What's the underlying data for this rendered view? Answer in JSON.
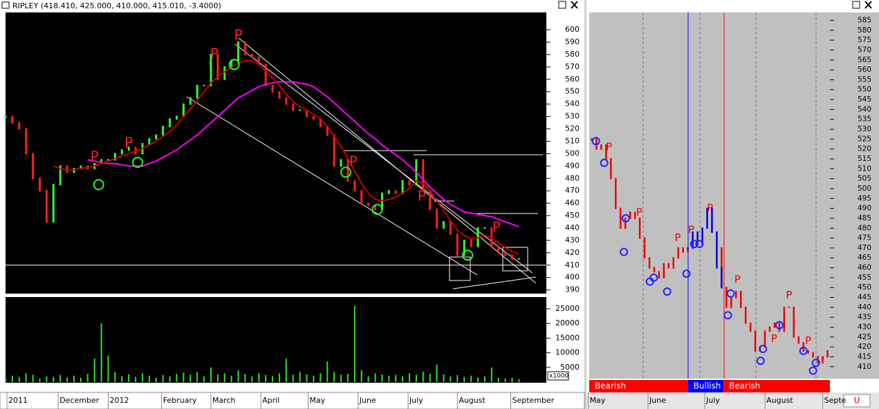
{
  "chart_data": [
    {
      "type": "stock",
      "title": "RIPLEY (418.410, 425.000, 410.000, 415.010, -3.4000)",
      "values": [
        530,
        525,
        520,
        500,
        480,
        470,
        445,
        475,
        490,
        485,
        488,
        490,
        488,
        492,
        495,
        495,
        500,
        503,
        505,
        500,
        508,
        512,
        515,
        522,
        528,
        530,
        540,
        545,
        555,
        555,
        580,
        560,
        570,
        575,
        590,
        580,
        578,
        572,
        555,
        550,
        545,
        540,
        535,
        535,
        530,
        528,
        522,
        515,
        490,
        495,
        478,
        470,
        460,
        458,
        455,
        468,
        470,
        468,
        478,
        475,
        495,
        470,
        455,
        440,
        445,
        435,
        418,
        430,
        425,
        440,
        440,
        425,
        420,
        418,
        415,
        415
      ],
      "up_color": "#33ff33",
      "down_color": "#ff2020",
      "moving_averages": [
        {
          "color": "#ff00ff",
          "values": [
            null,
            null,
            null,
            null,
            null,
            null,
            null,
            null,
            null,
            null,
            null,
            null,
            495,
            494,
            493,
            492,
            492,
            491,
            490,
            490,
            490,
            492,
            494,
            497,
            500,
            503,
            507,
            511,
            515,
            520,
            525,
            530,
            535,
            540,
            545,
            548,
            551,
            554,
            556,
            557,
            558,
            558,
            558,
            557,
            556,
            554,
            550,
            546,
            541,
            536,
            531,
            526,
            521,
            516,
            512,
            507,
            503,
            499,
            495,
            490,
            485,
            479,
            473,
            468,
            463,
            459,
            456,
            453,
            452,
            451,
            450,
            449,
            447,
            445,
            443,
            441
          ]
        },
        {
          "color": "#cc0000",
          "values": [
            null,
            null,
            null,
            null,
            null,
            null,
            null,
            490,
            488,
            487,
            487,
            488,
            489,
            490,
            492,
            494,
            496,
            498,
            500,
            502,
            504,
            507,
            510,
            514,
            518,
            523,
            530,
            536,
            543,
            550,
            557,
            562,
            566,
            570,
            573,
            575,
            575,
            572,
            567,
            561,
            555,
            548,
            542,
            538,
            535,
            532,
            528,
            522,
            514,
            506,
            496,
            486,
            476,
            468,
            463,
            462,
            463,
            465,
            468,
            472,
            478,
            476,
            470,
            462,
            454,
            446,
            438,
            434,
            431,
            432,
            434,
            432,
            428,
            424,
            421,
            419
          ]
        }
      ],
      "xlim": [
        0,
        79
      ],
      "ylim": [
        387,
        614
      ],
      "yticks": [
        390,
        400,
        410,
        420,
        430,
        440,
        450,
        460,
        470,
        480,
        490,
        500,
        510,
        520,
        530,
        540,
        550,
        560,
        570,
        580,
        590,
        600
      ],
      "xticks": [
        {
          "value": 0.2,
          "label": "2011"
        },
        {
          "value": 7.7,
          "label": "December"
        },
        {
          "value": 15,
          "label": "2012"
        },
        {
          "value": 22.8,
          "label": "February"
        },
        {
          "value": 30,
          "label": "March"
        },
        {
          "value": 37.3,
          "label": "April"
        },
        {
          "value": 44.2,
          "label": "May"
        },
        {
          "value": 51.5,
          "label": "June"
        },
        {
          "value": 58.8,
          "label": "July"
        },
        {
          "value": 66,
          "label": "August"
        },
        {
          "value": 73.8,
          "label": "September"
        }
      ],
      "reference_line": 410,
      "annotations": [
        {
          "x": 13,
          "y": 497,
          "label": "P"
        },
        {
          "x": 18,
          "y": 508,
          "label": "P"
        },
        {
          "x": 30.5,
          "y": 580,
          "label": "P"
        },
        {
          "x": 34,
          "y": 595,
          "label": "P"
        },
        {
          "x": 50.8,
          "y": 493,
          "label": "P"
        },
        {
          "x": 60.8,
          "y": 465,
          "label": "P"
        },
        {
          "x": 71.7,
          "y": 440,
          "label": "P"
        }
      ],
      "annotation_color": "#ff2020",
      "signals": {
        "x": [
          13.6,
          19.3,
          33.4,
          49.7,
          54.3,
          67.5
        ],
        "y": [
          475,
          493,
          572,
          485,
          455,
          418
        ]
      },
      "signal_color": "#22ff22"
    },
    {
      "type": "volume",
      "color": "#33dd33",
      "unit_label": "x1000",
      "values": [
        1500,
        2200,
        1800,
        3000,
        2500,
        1200,
        2000,
        1800,
        2500,
        1600,
        2200,
        1500,
        2800,
        8000,
        20000,
        9000,
        3500,
        2000,
        2600,
        1800,
        3000,
        2200,
        1500,
        2400,
        2000,
        2800,
        3200,
        2500,
        3500,
        2000,
        5000,
        2600,
        3000,
        2200,
        4000,
        2800,
        2000,
        3000,
        2400,
        2000,
        3000,
        8000,
        2500,
        3500,
        2600,
        2200,
        3000,
        7000,
        3500,
        2500,
        2800,
        26000,
        4000,
        2000,
        3000,
        2600,
        2200,
        2500,
        2000,
        3000,
        2500,
        3500,
        2800,
        6000,
        2600,
        2000,
        2400,
        1800,
        2200,
        1600,
        2000,
        5000,
        1500,
        1200,
        1500,
        1000
      ],
      "ylim": [
        0,
        29000
      ],
      "yticks": [
        5000,
        10000,
        15000,
        20000,
        25000
      ]
    },
    {
      "type": "bars",
      "xlim": [
        -0.5,
        49.5
      ],
      "ylim": [
        404,
        589
      ],
      "series": [
        {
          "color": "#ee0000",
          "values": [
            525,
            520,
            522,
            515,
            505,
            490,
            480,
            485,
            488,
            485,
            475,
            465,
            460,
            458,
            455,
            462,
            460,
            465,
            470,
            468,
            470,
            null,
            null,
            null,
            null,
            null,
            null,
            450,
            440,
            445,
            448,
            440,
            432,
            428,
            418,
            420,
            428,
            430,
            432,
            428,
            440,
            440,
            425,
            422,
            418,
            417,
            415,
            412,
            415,
            418
          ]
        },
        {
          "color": "#0000ee",
          "values": [
            null,
            null,
            null,
            null,
            null,
            null,
            null,
            null,
            null,
            null,
            null,
            null,
            null,
            null,
            null,
            null,
            null,
            null,
            null,
            null,
            470,
            478,
            472,
            480,
            490,
            478,
            460,
            450,
            null,
            null,
            null,
            null,
            null,
            null,
            null,
            null,
            null,
            null,
            null,
            null,
            null,
            null,
            null,
            null,
            null,
            null,
            null,
            null,
            null,
            null
          ]
        }
      ],
      "yticks": [
        410,
        415,
        420,
        425,
        430,
        435,
        440,
        445,
        450,
        455,
        460,
        465,
        470,
        475,
        480,
        485,
        490,
        495,
        500,
        505,
        510,
        515,
        520,
        525,
        530,
        535,
        540,
        545,
        550,
        555,
        560,
        565,
        570,
        575,
        580,
        585
      ],
      "xticks": [
        {
          "value": -0.4,
          "label": "May"
        },
        {
          "value": 12,
          "label": "June"
        },
        {
          "value": 23.8,
          "label": "July"
        },
        {
          "value": 36.3,
          "label": "August"
        },
        {
          "value": 48.3,
          "label": "Septe"
        }
      ],
      "annotations": [
        {
          "x": 3.6,
          "y": 521,
          "label": "P"
        },
        {
          "x": 9.9,
          "y": 488,
          "label": "P"
        },
        {
          "x": 17.9,
          "y": 475,
          "label": "P"
        },
        {
          "x": 20.7,
          "y": 479,
          "label": "P"
        },
        {
          "x": 24.6,
          "y": 490,
          "label": "P"
        },
        {
          "x": 30.3,
          "y": 454,
          "label": "P"
        },
        {
          "x": 37.9,
          "y": 424,
          "label": "P"
        },
        {
          "x": 41,
          "y": 446,
          "label": "P"
        },
        {
          "x": 45,
          "y": 423,
          "label": "P"
        }
      ],
      "annotation_color": "#ee0000",
      "signals": {
        "x": [
          0.9,
          2.6,
          6.7,
          7.1,
          12.1,
          12.9,
          15.7,
          19.7,
          21.3,
          22.4,
          28.3,
          28.9,
          35.1,
          35.6,
          39,
          44,
          46,
          46.6
        ],
        "y": [
          524,
          513,
          468,
          485,
          453,
          455,
          448,
          457,
          472,
          472,
          436,
          447,
          413,
          419,
          431,
          418,
          408,
          412
        ]
      },
      "signal_color": "#2222ff",
      "regimes": [
        {
          "label": "Bearish",
          "color": "#ff0000",
          "from": -0.5,
          "to": 20
        },
        {
          "label": "Bullish",
          "color": "#0000ff",
          "from": 20,
          "to": 27.4
        },
        {
          "label": "Bearish",
          "color": "#ff0000",
          "from": 27.4,
          "to": 49.5
        }
      ]
    }
  ],
  "ui": {
    "button": "U"
  }
}
